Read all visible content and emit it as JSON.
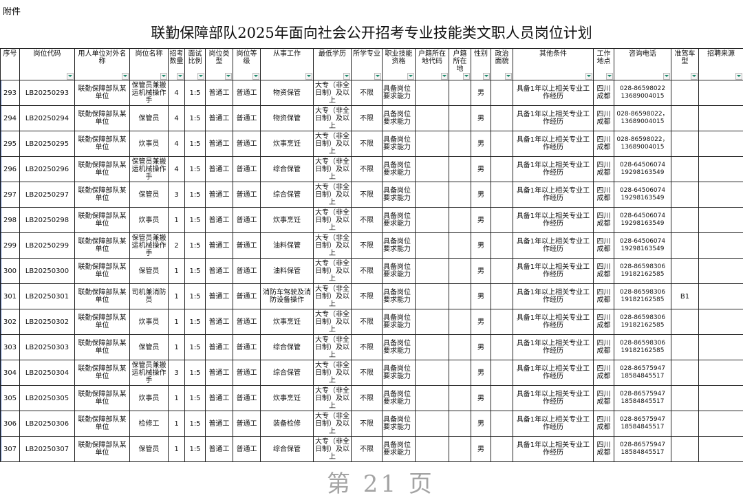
{
  "attachment": "附件",
  "title": "联勤保障部队2025年面向社会公开招考专业技能类文职人员岗位计划",
  "watermark": "第 21 页",
  "accent_color": "#1a8a6a",
  "headers": [
    "序号",
    "岗位代码",
    "用人单位对外名称",
    "岗位名称",
    "招考数量",
    "面试比例",
    "岗位类型",
    "岗位等级",
    "从事工作",
    "最低学历",
    "所学专业",
    "职业技能资格",
    "户籍所在地代码",
    "户籍所在地",
    "性别",
    "政治面貌",
    "其他条件",
    "工作地点",
    "咨询电话",
    "准驾车型",
    "招聘来源"
  ],
  "rows": [
    [
      "293",
      "LB20250293",
      "联勤保障部队某单位",
      "保管员兼搬运机械操作手",
      "4",
      "1:5",
      "普通工",
      "普通工",
      "物资保管",
      "大专（非全日制）及以上",
      "不限",
      "具备岗位要求能力",
      "",
      "",
      "男",
      "",
      "具备1年以上相关专业工作经历",
      "四川成都",
      "028-86598022 13689004015",
      "",
      ""
    ],
    [
      "294",
      "LB20250294",
      "联勤保障部队某单位",
      "保管员",
      "4",
      "1:5",
      "普通工",
      "普通工",
      "物资保管",
      "大专（非全日制）及以上",
      "不限",
      "具备岗位要求能力",
      "",
      "",
      "男",
      "",
      "具备1年以上相关专业工作经历",
      "四川成都",
      "028-86598022， 13689004015",
      "",
      ""
    ],
    [
      "295",
      "LB20250295",
      "联勤保障部队某单位",
      "炊事员",
      "4",
      "1:5",
      "普通工",
      "普通工",
      "炊事烹饪",
      "大专（非全日制）及以上",
      "不限",
      "具备岗位要求能力",
      "",
      "",
      "男",
      "",
      "具备1年以上相关专业工作经历",
      "四川成都",
      "028-86598022， 13689004015",
      "",
      ""
    ],
    [
      "296",
      "LB20250296",
      "联勤保障部队某单位",
      "保管员兼搬运机械操作手",
      "4",
      "1:5",
      "普通工",
      "普通工",
      "综合保管",
      "大专（非全日制）及以上",
      "不限",
      "具备岗位要求能力",
      "",
      "",
      "男",
      "",
      "具备1年以上相关专业工作经历",
      "四川成都",
      "028-64506074 19298163549",
      "",
      ""
    ],
    [
      "297",
      "LB20250297",
      "联勤保障部队某单位",
      "保管员",
      "3",
      "1:5",
      "普通工",
      "普通工",
      "综合保管",
      "大专（非全日制）及以上",
      "不限",
      "具备岗位要求能力",
      "",
      "",
      "男",
      "",
      "具备1年以上相关专业工作经历",
      "四川成都",
      "028-64506074 19298163549",
      "",
      ""
    ],
    [
      "298",
      "LB20250298",
      "联勤保障部队某单位",
      "炊事员",
      "1",
      "1:5",
      "普通工",
      "普通工",
      "炊事烹饪",
      "大专（非全日制）及以上",
      "不限",
      "具备岗位要求能力",
      "",
      "",
      "男",
      "",
      "具备1年以上相关专业工作经历",
      "四川成都",
      "028-64506074 19298163549",
      "",
      ""
    ],
    [
      "299",
      "LB20250299",
      "联勤保障部队某单位",
      "保管员兼搬运机械操作手",
      "2",
      "1:5",
      "普通工",
      "普通工",
      "油料保管",
      "大专（非全日制）及以上",
      "不限",
      "具备岗位要求能力",
      "",
      "",
      "男",
      "",
      "具备1年以上相关专业工作经历",
      "四川成都",
      "028-64506074 19298163549",
      "",
      ""
    ],
    [
      "300",
      "LB20250300",
      "联勤保障部队某单位",
      "保管员",
      "1",
      "1:5",
      "普通工",
      "普通工",
      "油料保管",
      "大专（非全日制）及以上",
      "不限",
      "具备岗位要求能力",
      "",
      "",
      "男",
      "",
      "具备1年以上相关专业工作经历",
      "四川成都",
      "028-86598306 19182162585",
      "",
      ""
    ],
    [
      "301",
      "LB20250301",
      "联勤保障部队某单位",
      "司机兼消防员",
      "1",
      "1:5",
      "普通工",
      "普通工",
      "消防车驾驶及消防设备操作",
      "大专（非全日制）及以上",
      "不限",
      "具备岗位要求能力",
      "",
      "",
      "男",
      "",
      "具备1年以上相关专业工作经历",
      "四川成都",
      "028-86598306 19182162585",
      "B1",
      ""
    ],
    [
      "302",
      "LB20250302",
      "联勤保障部队某单位",
      "炊事员",
      "1",
      "1:5",
      "普通工",
      "普通工",
      "炊事烹饪",
      "大专（非全日制）及以上",
      "不限",
      "具备岗位要求能力",
      "",
      "",
      "男",
      "",
      "具备1年以上相关专业工作经历",
      "四川成都",
      "028-86598306 19182162585",
      "",
      ""
    ],
    [
      "303",
      "LB20250303",
      "联勤保障部队某单位",
      "保管员",
      "1",
      "1:5",
      "普通工",
      "普通工",
      "综合保管",
      "大专（非全日制）及以上",
      "不限",
      "具备岗位要求能力",
      "",
      "",
      "男",
      "",
      "具备1年以上相关专业工作经历",
      "四川成都",
      "028-86598306 19182162585",
      "",
      ""
    ],
    [
      "304",
      "LB20250304",
      "联勤保障部队某单位",
      "保管员兼搬运机械操作手",
      "3",
      "1:5",
      "普通工",
      "普通工",
      "综合保管",
      "大专（非全日制）及以上",
      "不限",
      "具备岗位要求能力",
      "",
      "",
      "男",
      "",
      "具备1年以上相关专业工作经历",
      "四川成都",
      "028-86575947 18584845517",
      "",
      ""
    ],
    [
      "305",
      "LB20250305",
      "联勤保障部队某单位",
      "炊事员",
      "1",
      "1:5",
      "普通工",
      "普通工",
      "炊事烹饪",
      "大专（非全日制）及以上",
      "不限",
      "具备岗位要求能力",
      "",
      "",
      "男",
      "",
      "具备1年以上相关专业工作经历",
      "四川成都",
      "028-86575947 18584845517",
      "",
      ""
    ],
    [
      "306",
      "LB20250306",
      "联勤保障部队某单位",
      "检修工",
      "1",
      "1:5",
      "普通工",
      "普通工",
      "装备检修",
      "大专（非全日制）及以上",
      "不限",
      "具备岗位要求能力",
      "",
      "",
      "男",
      "",
      "具备1年以上相关专业工作经历",
      "四川成都",
      "028-86575947 18584845517",
      "",
      ""
    ],
    [
      "307",
      "LB20250307",
      "联勤保障部队某单位",
      "保管员",
      "1",
      "1:5",
      "普通工",
      "普通工",
      "综合保管",
      "大专（非全日制）及以上",
      "不限",
      "具备岗位要求能力",
      "",
      "",
      "男",
      "",
      "具备1年以上相关专业工作经历",
      "四川成都",
      "028-86575947 18584845517",
      "",
      ""
    ]
  ]
}
